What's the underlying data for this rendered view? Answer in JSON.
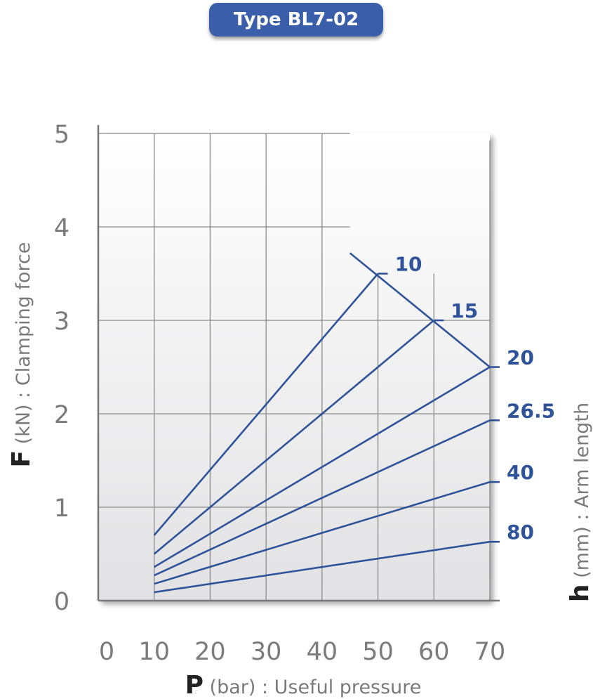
{
  "title": "Type BL7-02",
  "colors": {
    "series": "#2f5399",
    "badge": "#3a5eaa",
    "grid": "#8a8a8a"
  },
  "chart_data": {
    "type": "line",
    "title": "Type BL7-02",
    "xlabel": {
      "symbol": "P",
      "rest": " (bar) : Useful pressure"
    },
    "ylabel": {
      "symbol": "F",
      "rest": " (kN) : Clamping force"
    },
    "y2label": {
      "symbol": "h",
      "rest": " (mm) : Arm length"
    },
    "xlim": [
      0,
      70
    ],
    "ylim": [
      0,
      5
    ],
    "x_ticks": [
      0,
      10,
      20,
      30,
      40,
      50,
      60,
      70
    ],
    "y_ticks": [
      0,
      1,
      2,
      3,
      4,
      5
    ],
    "grid": true,
    "series": [
      {
        "name": "10",
        "x": [
          10,
          50
        ],
        "y": [
          0.7,
          3.5
        ]
      },
      {
        "name": "15",
        "x": [
          10,
          60
        ],
        "y": [
          0.5,
          3.0
        ]
      },
      {
        "name": "20",
        "x": [
          10,
          70
        ],
        "y": [
          0.36,
          2.5
        ]
      },
      {
        "name": "26.5",
        "x": [
          10,
          70
        ],
        "y": [
          0.27,
          1.93
        ]
      },
      {
        "name": "40",
        "x": [
          10,
          70
        ],
        "y": [
          0.18,
          1.27
        ]
      },
      {
        "name": "80",
        "x": [
          10,
          70
        ],
        "y": [
          0.09,
          0.63
        ]
      }
    ],
    "limit_line": {
      "x": [
        45,
        70
      ],
      "y": [
        3.72,
        2.5
      ]
    }
  }
}
